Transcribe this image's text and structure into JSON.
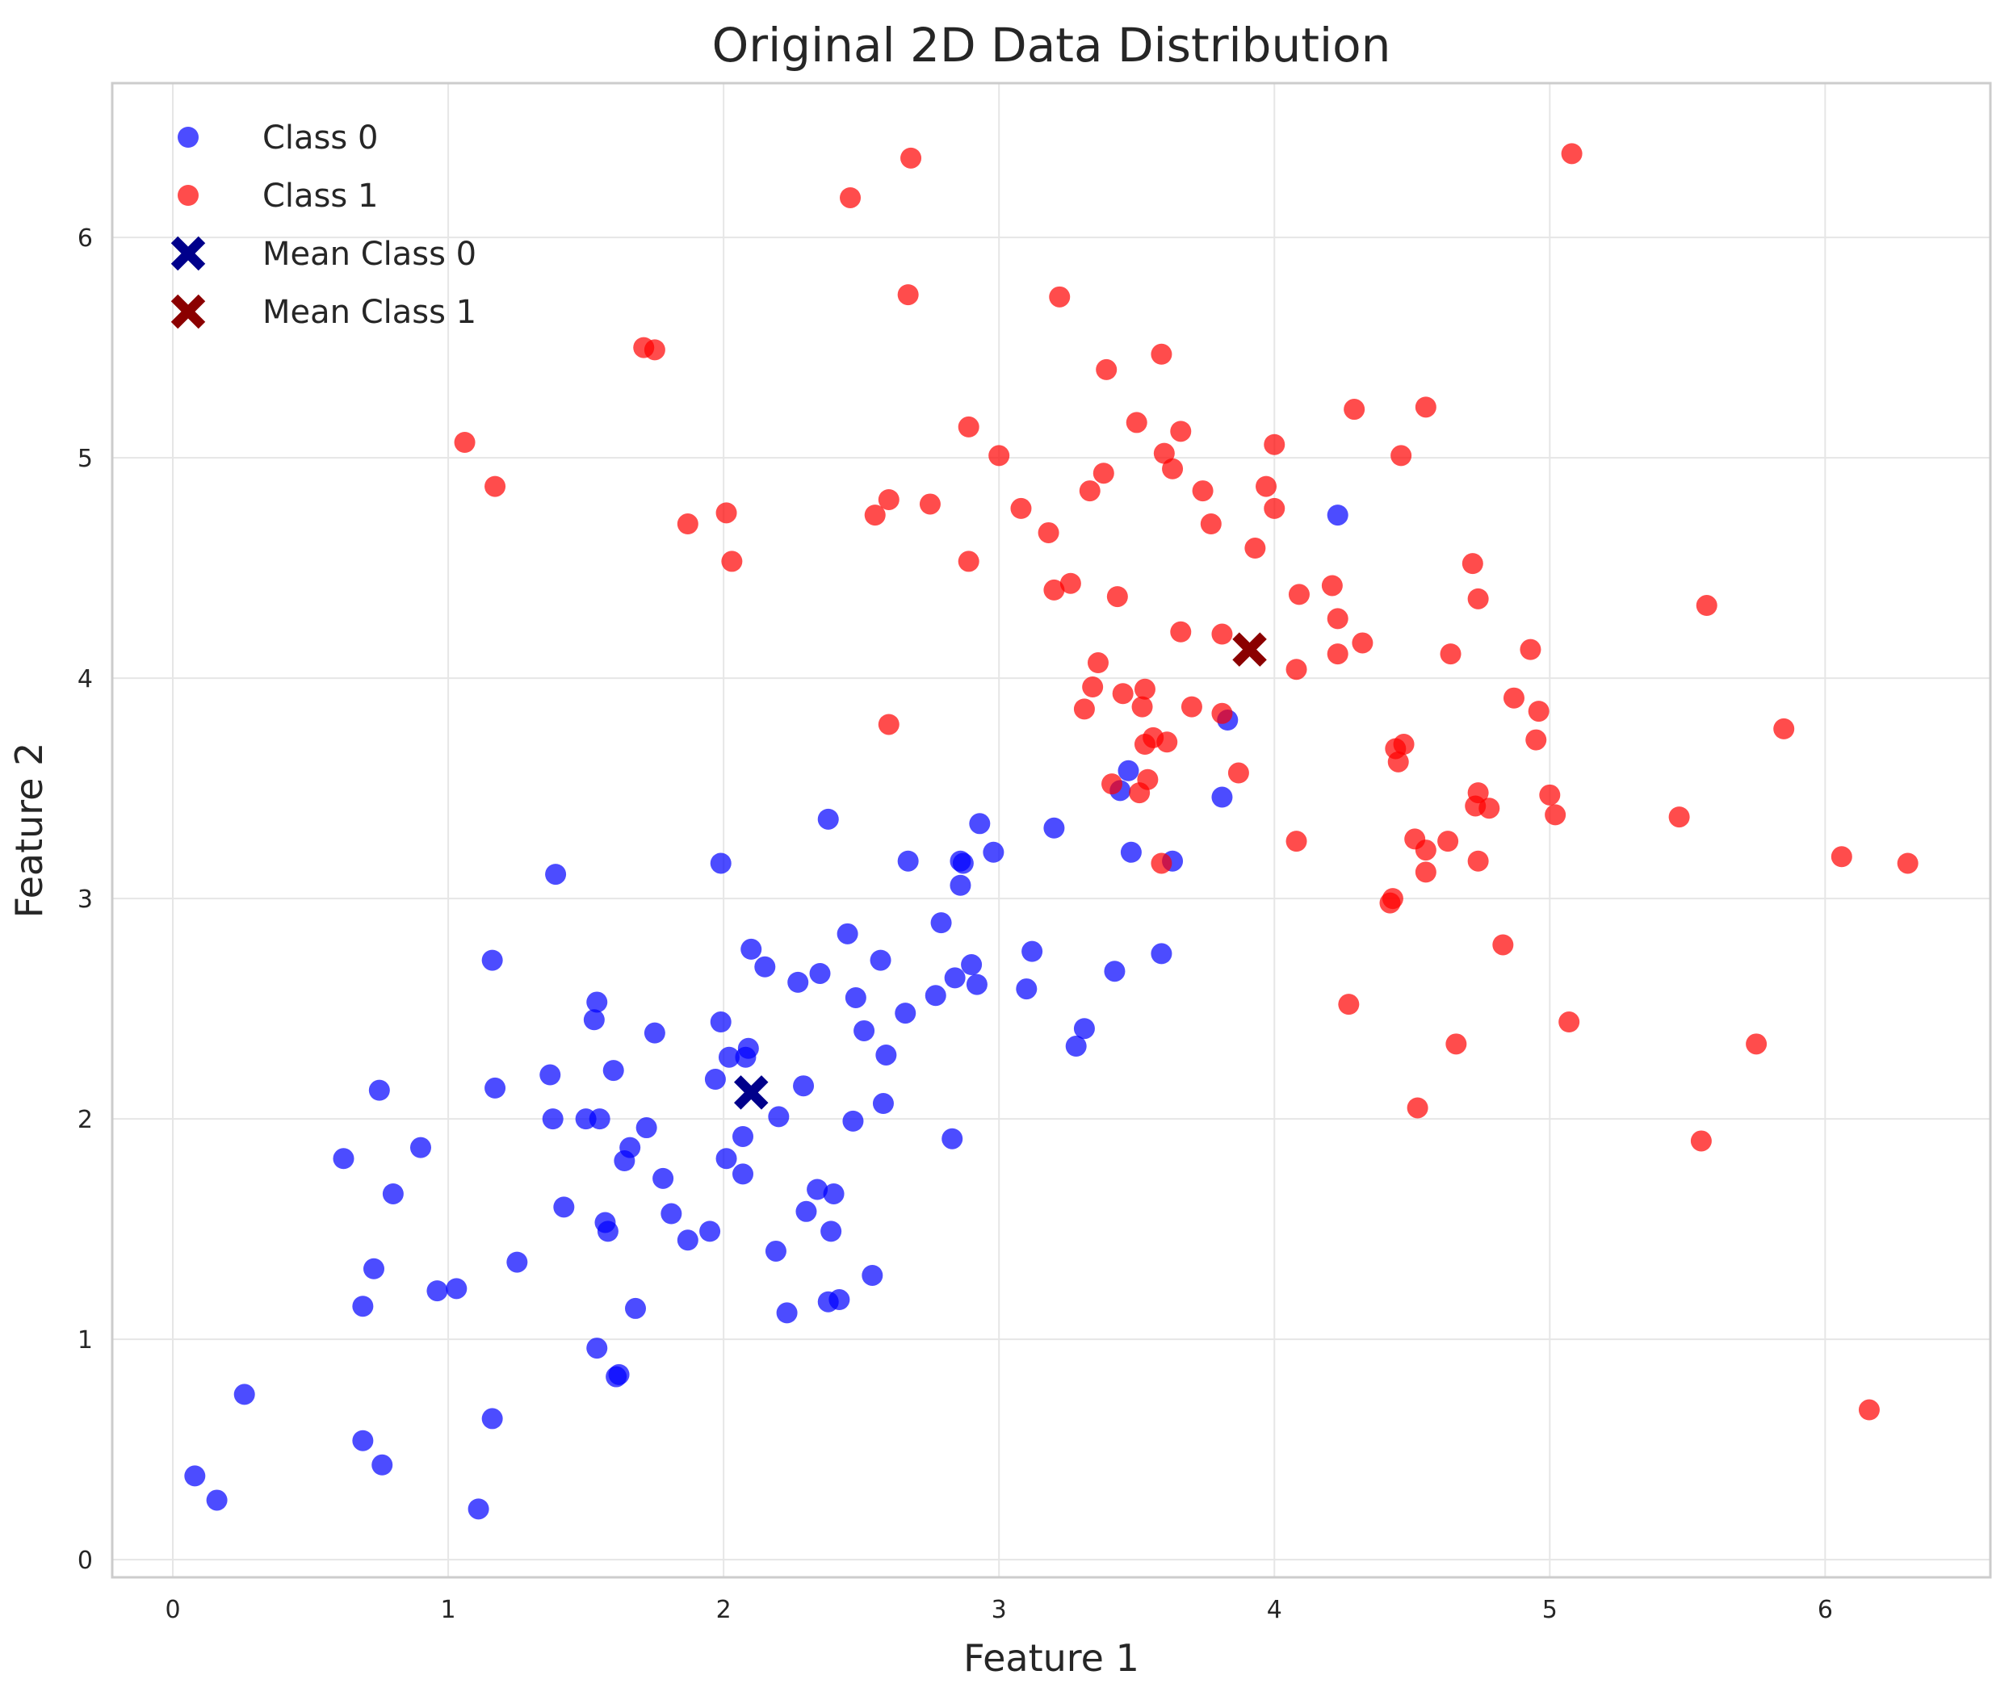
{
  "chart_data": {
    "type": "scatter",
    "title": "Original 2D Data Distribution",
    "xlabel": "Feature 1",
    "ylabel": "Feature 2",
    "xlim": [
      -0.22,
      6.6
    ],
    "ylim": [
      -0.08,
      6.7
    ],
    "xticks": [
      "0",
      "1",
      "2",
      "3",
      "4",
      "5",
      "6"
    ],
    "yticks": [
      "0",
      "1",
      "2",
      "3",
      "4",
      "5",
      "6"
    ],
    "grid": true,
    "legend_position": "top-left",
    "colors": {
      "class0": "#0000ff",
      "class1": "#ff0000",
      "mean0": "#00008b",
      "mean1": "#8b0000",
      "grid": "#e6e6e6",
      "frame": "#cccccc"
    },
    "series": [
      {
        "name": "Class 0",
        "marker": "circle",
        "x": [
          0.08,
          0.16,
          0.26,
          0.62,
          0.69,
          0.69,
          0.73,
          0.75,
          0.76,
          0.8,
          0.9,
          0.96,
          1.03,
          1.11,
          1.16,
          1.16,
          1.17,
          1.25,
          1.37,
          1.38,
          1.39,
          1.42,
          1.5,
          1.53,
          1.54,
          1.54,
          1.55,
          1.57,
          1.58,
          1.6,
          1.61,
          1.62,
          1.64,
          1.66,
          1.68,
          1.72,
          1.75,
          1.78,
          1.81,
          1.87,
          1.95,
          1.97,
          1.99,
          1.99,
          2.01,
          2.02,
          2.07,
          2.07,
          2.08,
          2.09,
          2.1,
          2.15,
          2.19,
          2.2,
          2.23,
          2.27,
          2.29,
          2.3,
          2.34,
          2.35,
          2.38,
          2.38,
          2.39,
          2.4,
          2.42,
          2.45,
          2.47,
          2.48,
          2.51,
          2.54,
          2.57,
          2.58,
          2.59,
          2.66,
          2.67,
          2.77,
          2.79,
          2.83,
          2.84,
          2.86,
          2.86,
          2.87,
          2.9,
          2.92,
          2.93,
          2.98,
          3.1,
          3.12,
          3.2,
          3.28,
          3.31,
          3.42,
          3.44,
          3.47,
          3.48,
          3.59,
          3.63,
          3.81,
          3.83,
          4.23
        ],
        "y": [
          0.38,
          0.27,
          0.75,
          1.82,
          0.54,
          1.15,
          1.32,
          2.13,
          0.43,
          1.66,
          1.87,
          1.22,
          1.23,
          0.23,
          0.64,
          2.72,
          2.14,
          1.35,
          2.2,
          2.0,
          3.11,
          1.6,
          2.0,
          2.45,
          0.96,
          2.53,
          2.0,
          1.53,
          1.49,
          2.22,
          0.83,
          0.84,
          1.81,
          1.87,
          1.14,
          1.96,
          2.39,
          1.73,
          1.57,
          1.45,
          1.49,
          2.18,
          3.16,
          2.44,
          1.82,
          2.28,
          1.75,
          1.92,
          2.28,
          2.32,
          2.77,
          2.69,
          1.4,
          2.01,
          1.12,
          2.62,
          2.15,
          1.58,
          1.68,
          2.66,
          3.36,
          1.17,
          1.49,
          1.66,
          1.18,
          2.84,
          1.99,
          2.55,
          2.4,
          1.29,
          2.72,
          2.07,
          2.29,
          2.48,
          3.17,
          2.56,
          2.89,
          1.91,
          2.64,
          3.17,
          3.06,
          3.16,
          2.7,
          2.61,
          3.34,
          3.21,
          2.59,
          2.76,
          3.32,
          2.33,
          2.41,
          2.67,
          3.49,
          3.58,
          3.21,
          2.75,
          3.17,
          3.46,
          3.81,
          4.74
        ]
      },
      {
        "name": "Class 1",
        "marker": "circle",
        "x": [
          1.06,
          1.17,
          1.71,
          1.75,
          1.87,
          2.01,
          2.03,
          2.46,
          2.55,
          2.6,
          2.6,
          2.67,
          2.68,
          2.75,
          2.89,
          2.89,
          3.0,
          3.08,
          3.18,
          3.2,
          3.22,
          3.26,
          3.31,
          3.33,
          3.34,
          3.36,
          3.38,
          3.39,
          3.41,
          3.43,
          3.45,
          3.5,
          3.51,
          3.52,
          3.53,
          3.53,
          3.54,
          3.56,
          3.59,
          3.59,
          3.6,
          3.61,
          3.63,
          3.66,
          3.66,
          3.7,
          3.74,
          3.77,
          3.81,
          3.81,
          3.87,
          3.93,
          3.97,
          4.0,
          4.0,
          4.08,
          4.08,
          4.09,
          4.21,
          4.23,
          4.23,
          4.27,
          4.29,
          4.32,
          4.42,
          4.43,
          4.44,
          4.45,
          4.46,
          4.47,
          4.51,
          4.52,
          4.55,
          4.55,
          4.55,
          4.63,
          4.64,
          4.66,
          4.72,
          4.73,
          4.74,
          4.74,
          4.74,
          4.78,
          4.83,
          4.87,
          4.93,
          4.95,
          4.96,
          5.0,
          5.02,
          5.07,
          5.08,
          5.47,
          5.55,
          5.57,
          5.75,
          5.85,
          6.06,
          6.16,
          6.3
        ],
        "y": [
          5.07,
          4.87,
          5.5,
          5.49,
          4.7,
          4.75,
          4.53,
          6.18,
          4.74,
          3.79,
          4.81,
          5.74,
          6.36,
          4.79,
          5.14,
          4.53,
          5.01,
          4.77,
          4.66,
          4.4,
          5.73,
          4.43,
          3.86,
          4.85,
          3.96,
          4.07,
          4.93,
          5.4,
          3.52,
          4.37,
          3.93,
          5.16,
          3.48,
          3.87,
          3.95,
          3.7,
          3.54,
          3.73,
          3.16,
          5.47,
          5.02,
          3.71,
          4.95,
          4.21,
          5.12,
          3.87,
          4.85,
          4.7,
          4.2,
          3.84,
          3.57,
          4.59,
          4.87,
          4.77,
          5.06,
          4.04,
          3.26,
          4.38,
          4.42,
          4.27,
          4.11,
          2.52,
          5.22,
          4.16,
          2.98,
          3.0,
          3.68,
          3.62,
          5.01,
          3.7,
          3.27,
          2.05,
          3.22,
          3.12,
          5.23,
          3.26,
          4.11,
          2.34,
          4.52,
          3.42,
          4.36,
          3.48,
          3.17,
          3.41,
          2.79,
          3.91,
          4.13,
          3.72,
          3.85,
          3.47,
          3.38,
          2.44,
          6.38,
          3.37,
          1.9,
          4.33,
          2.34,
          3.77,
          3.19,
          0.68,
          3.16
        ]
      },
      {
        "name": "Mean Class 0",
        "marker": "x",
        "x": [
          2.1
        ],
        "y": [
          2.12
        ]
      },
      {
        "name": "Mean Class 1",
        "marker": "x",
        "x": [
          3.91
        ],
        "y": [
          4.13
        ]
      }
    ]
  }
}
